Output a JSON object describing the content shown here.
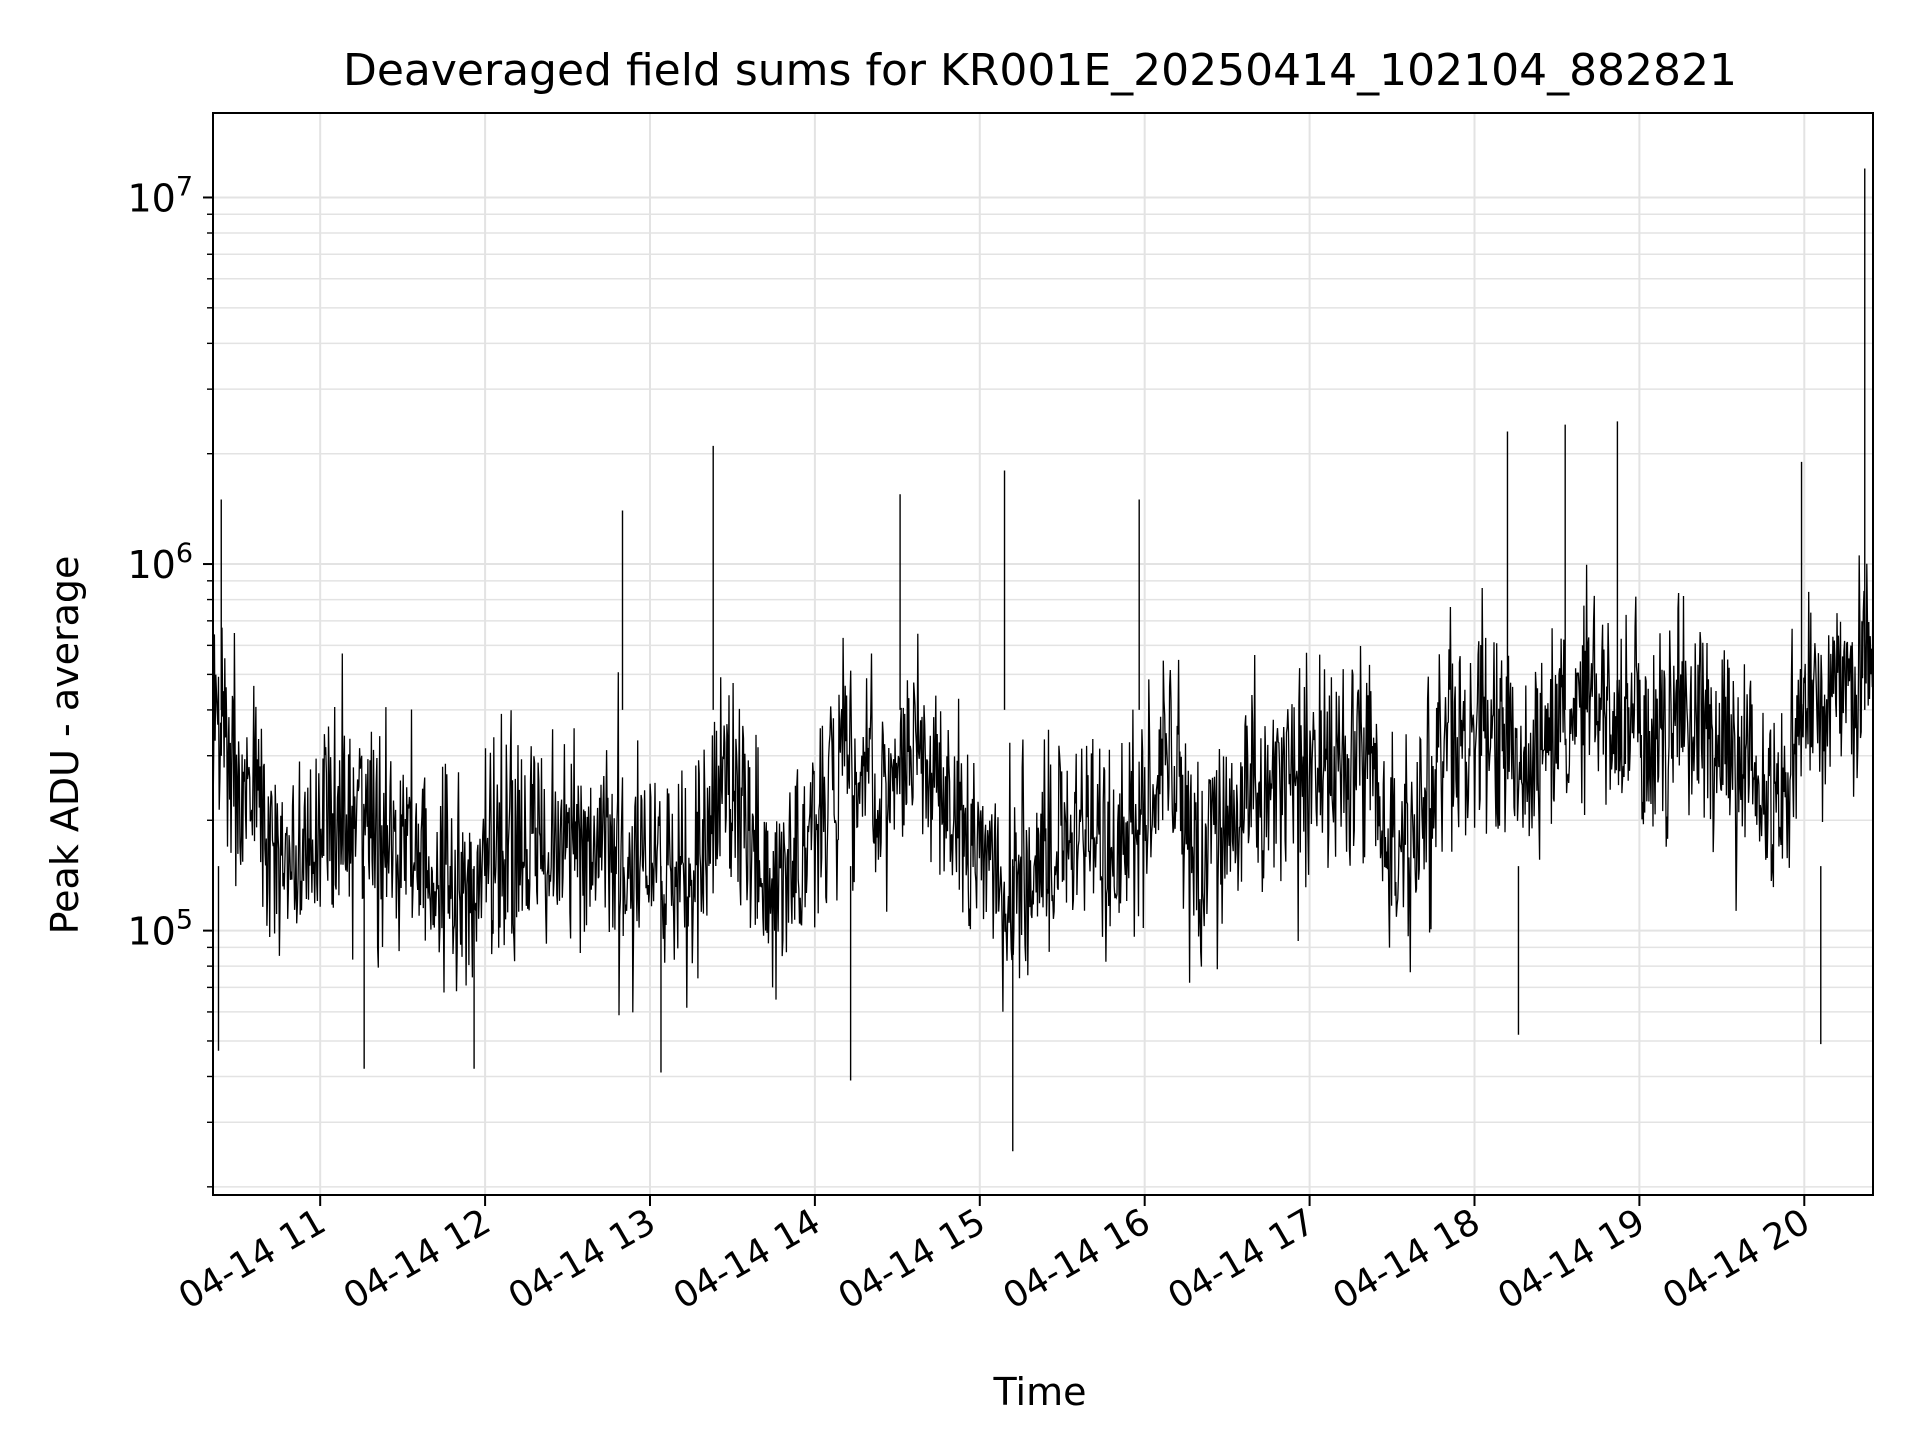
{
  "chart_data": {
    "type": "line",
    "title": "Deaveraged field sums for KR001E_20250414_102104_882821",
    "xlabel": "Time",
    "ylabel": "Peak ADU - average",
    "yscale": "log",
    "ylim": [
      19000,
      17000000
    ],
    "xlim": [
      "2025-04-14 10:21",
      "2025-04-14 20:25"
    ],
    "x_ticks": [
      "2025-04-14 11:00",
      "2025-04-14 12:00",
      "2025-04-14 13:00",
      "2025-04-14 14:00",
      "2025-04-14 15:00",
      "2025-04-14 16:00",
      "2025-04-14 17:00",
      "2025-04-14 18:00",
      "2025-04-14 19:00",
      "2025-04-14 20:00"
    ],
    "x_tick_labels": [
      "04-14 11",
      "04-14 12",
      "04-14 13",
      "04-14 14",
      "04-14 15",
      "04-14 16",
      "04-14 17",
      "04-14 18",
      "04-14 19",
      "04-14 20"
    ],
    "y_tick_labels": [
      {
        "value": 100000,
        "base": "10",
        "exp": "5"
      },
      {
        "value": 1000000,
        "base": "10",
        "exp": "6"
      },
      {
        "value": 10000000,
        "base": "10",
        "exp": "7"
      }
    ],
    "grid": true,
    "line_color": "#000000",
    "series": [
      {
        "x": [
          "2025-04-14 10:21",
          "2025-04-14 10:30",
          "2025-04-14 10:40",
          "2025-04-14 10:50",
          "2025-04-14 11:00",
          "2025-04-14 11:10",
          "2025-04-14 11:20",
          "2025-04-14 11:30",
          "2025-04-14 11:40",
          "2025-04-14 11:50",
          "2025-04-14 12:00",
          "2025-04-14 12:10",
          "2025-04-14 12:20",
          "2025-04-14 12:30",
          "2025-04-14 12:40",
          "2025-04-14 12:50",
          "2025-04-14 13:00",
          "2025-04-14 13:10",
          "2025-04-14 13:20",
          "2025-04-14 13:30",
          "2025-04-14 13:40",
          "2025-04-14 13:50",
          "2025-04-14 14:00",
          "2025-04-14 14:10",
          "2025-04-14 14:20",
          "2025-04-14 14:30",
          "2025-04-14 14:40",
          "2025-04-14 14:50",
          "2025-04-14 15:00",
          "2025-04-14 15:10",
          "2025-04-14 15:20",
          "2025-04-14 15:30",
          "2025-04-14 15:40",
          "2025-04-14 15:50",
          "2025-04-14 16:00",
          "2025-04-14 16:10",
          "2025-04-14 16:20",
          "2025-04-14 16:30",
          "2025-04-14 16:40",
          "2025-04-14 16:50",
          "2025-04-14 17:00",
          "2025-04-14 17:10",
          "2025-04-14 17:20",
          "2025-04-14 17:30",
          "2025-04-14 17:40",
          "2025-04-14 17:50",
          "2025-04-14 18:00",
          "2025-04-14 18:10",
          "2025-04-14 18:20",
          "2025-04-14 18:30",
          "2025-04-14 18:40",
          "2025-04-14 18:50",
          "2025-04-14 19:00",
          "2025-04-14 19:10",
          "2025-04-14 19:20",
          "2025-04-14 19:30",
          "2025-04-14 19:40",
          "2025-04-14 19:50",
          "2025-04-14 20:00",
          "2025-04-14 20:10",
          "2025-04-14 20:20",
          "2025-04-14 20:25"
        ],
        "y": [
          350000,
          280000,
          220000,
          160000,
          180000,
          240000,
          170000,
          180000,
          160000,
          120000,
          170000,
          180000,
          160000,
          200000,
          190000,
          150000,
          170000,
          140000,
          180000,
          250000,
          140000,
          160000,
          170000,
          280000,
          250000,
          240000,
          300000,
          200000,
          160000,
          130000,
          150000,
          180000,
          200000,
          170000,
          250000,
          270000,
          180000,
          190000,
          240000,
          280000,
          270000,
          300000,
          310000,
          160000,
          180000,
          350000,
          380000,
          320000,
          300000,
          360000,
          420000,
          400000,
          350000,
          320000,
          400000,
          310000,
          290000,
          200000,
          380000,
          420000,
          520000,
          560000
        ]
      }
    ],
    "spikes": [
      {
        "x": "2025-04-14 10:24",
        "y": 1500000
      },
      {
        "x": "2025-04-14 10:23",
        "y": 47000
      },
      {
        "x": "2025-04-14 11:16",
        "y": 42000
      },
      {
        "x": "2025-04-14 11:56",
        "y": 42000
      },
      {
        "x": "2025-04-14 12:50",
        "y": 1400000
      },
      {
        "x": "2025-04-14 13:04",
        "y": 41000
      },
      {
        "x": "2025-04-14 13:23",
        "y": 2100000
      },
      {
        "x": "2025-04-14 14:13",
        "y": 39000
      },
      {
        "x": "2025-04-14 14:31",
        "y": 1550000
      },
      {
        "x": "2025-04-14 15:09",
        "y": 1800000
      },
      {
        "x": "2025-04-14 15:12",
        "y": 25000
      },
      {
        "x": "2025-04-14 15:58",
        "y": 1500000
      },
      {
        "x": "2025-04-14 18:12",
        "y": 2300000
      },
      {
        "x": "2025-04-14 18:33",
        "y": 2400000
      },
      {
        "x": "2025-04-14 18:52",
        "y": 2450000
      },
      {
        "x": "2025-04-14 18:16",
        "y": 52000
      },
      {
        "x": "2025-04-14 19:59",
        "y": 1900000
      },
      {
        "x": "2025-04-14 20:06",
        "y": 49000
      },
      {
        "x": "2025-04-14 20:22",
        "y": 12000000
      }
    ]
  }
}
